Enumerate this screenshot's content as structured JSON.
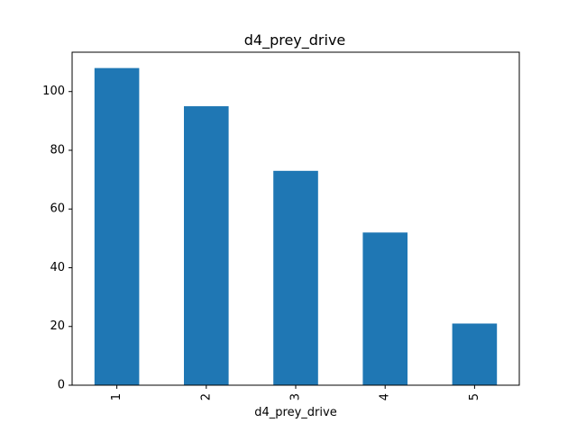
{
  "chart_data": {
    "type": "bar",
    "title": "d4_prey_drive",
    "xlabel": "d4_prey_drive",
    "ylabel": "",
    "categories": [
      "1",
      "2",
      "3",
      "4",
      "5"
    ],
    "values": [
      108,
      95,
      73,
      52,
      21
    ],
    "yticks": [
      0,
      20,
      40,
      60,
      80,
      100
    ],
    "ylim": [
      0,
      113.4
    ],
    "bar_color": "#1f77b4",
    "grid": false,
    "legend": "none",
    "xtick_rotation": "vertical"
  }
}
